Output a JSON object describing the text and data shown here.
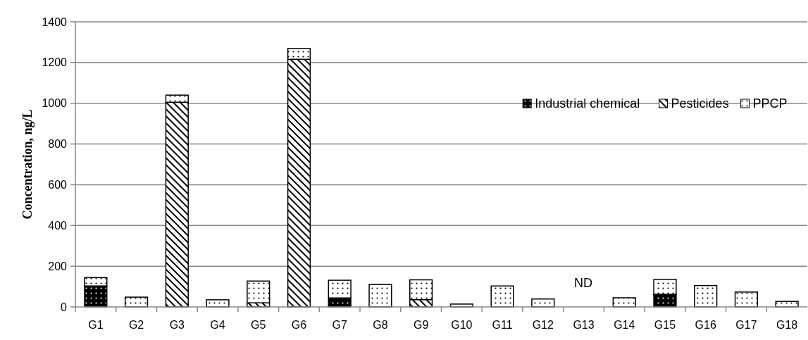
{
  "chart_data": {
    "type": "bar",
    "stacked": true,
    "ylabel": "Concentration, ng/L",
    "categories": [
      "G1",
      "G2",
      "G3",
      "G4",
      "G5",
      "G6",
      "G7",
      "G8",
      "G9",
      "G10",
      "G11",
      "G12",
      "G13",
      "G14",
      "G15",
      "G16",
      "G17",
      "G18"
    ],
    "series": [
      {
        "name": "Industrial chemical",
        "color": "#000000",
        "values": [
          103,
          0,
          0,
          0,
          0,
          0,
          44,
          0,
          0,
          0,
          0,
          0,
          null,
          0,
          62,
          0,
          null,
          0
        ]
      },
      {
        "name": "Pesticides",
        "color": "#000000",
        "values": [
          0,
          0,
          1005,
          0,
          20,
          1216,
          0,
          0,
          36,
          0,
          0,
          0,
          null,
          0,
          0,
          0,
          0,
          0
        ]
      },
      {
        "name": "PPCP",
        "color": "#000000",
        "values": [
          41,
          48,
          35,
          35,
          107,
          53,
          87,
          110,
          97,
          14,
          103,
          39,
          null,
          45,
          73,
          105,
          73,
          27
        ]
      }
    ],
    "ylim": [
      0,
      1400
    ],
    "yticks": [
      0,
      200,
      400,
      600,
      800,
      1000,
      1200,
      1400
    ],
    "grid": "y",
    "legend": "top right",
    "annotations": [
      "ND"
    ]
  }
}
